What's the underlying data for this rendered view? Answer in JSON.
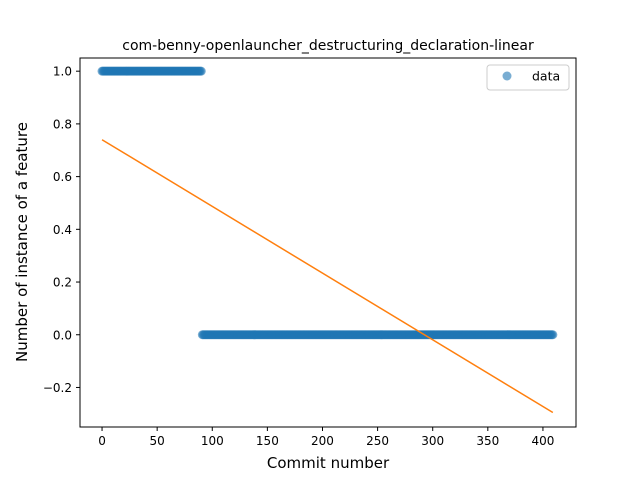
{
  "chart_data": {
    "type": "scatter",
    "title": "com-benny-openlauncher_destructuring_declaration-linear",
    "xlabel": "Commit number",
    "ylabel": "Number of instance of a feature",
    "xlim": [
      -20,
      430
    ],
    "ylim": [
      -0.35,
      1.05
    ],
    "xticks": [
      0,
      50,
      100,
      150,
      200,
      250,
      300,
      350,
      400
    ],
    "yticks": [
      -0.2,
      0.0,
      0.2,
      0.4,
      0.6,
      0.8,
      1.0
    ],
    "xtick_labels": [
      "0",
      "50",
      "100",
      "150",
      "200",
      "250",
      "300",
      "350",
      "400"
    ],
    "ytick_labels": [
      "−0.2",
      "0.0",
      "0.2",
      "0.4",
      "0.6",
      "0.8",
      "1.0"
    ],
    "legend": {
      "label": "data",
      "position": "top-right"
    },
    "series": [
      {
        "name": "data",
        "kind": "scatter",
        "segments": [
          {
            "x_start": 0,
            "x_end": 90,
            "y": 1.0
          },
          {
            "x_start": 91,
            "x_end": 409,
            "y": 0.0
          }
        ]
      },
      {
        "name": "linear fit",
        "kind": "line",
        "points": [
          [
            0,
            0.74
          ],
          [
            409,
            -0.295
          ]
        ]
      }
    ],
    "colors": {
      "data": "#1f77b4",
      "fit": "#ff7f0e"
    }
  }
}
